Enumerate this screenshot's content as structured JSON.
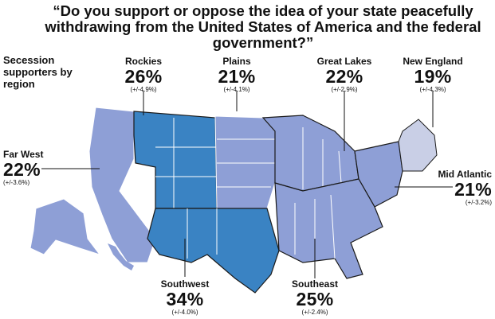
{
  "title": "“Do you support or oppose the idea of your state peacefully withdrawing from the United States of America and the federal government?”",
  "subhead": "Secession supporters by region",
  "colors": {
    "light": "#8e9fd6",
    "dark": "#3a83c3",
    "newengland": "#c9cfe6",
    "border": "#ffffff",
    "region_border": "#1a1a1a"
  },
  "regions": [
    {
      "key": "far_west",
      "name": "Far West",
      "pct": "22%",
      "moe": "(+/-3.6%)",
      "shade": "light"
    },
    {
      "key": "rockies",
      "name": "Rockies",
      "pct": "26%",
      "moe": "(+/-4.9%)",
      "shade": "dark"
    },
    {
      "key": "plains",
      "name": "Plains",
      "pct": "21%",
      "moe": "(+/-4.1%)",
      "shade": "light"
    },
    {
      "key": "great_lakes",
      "name": "Great Lakes",
      "pct": "22%",
      "moe": "(+/-2.9%)",
      "shade": "light"
    },
    {
      "key": "new_england",
      "name": "New England",
      "pct": "19%",
      "moe": "(+/-4.3%)",
      "shade": "newengland"
    },
    {
      "key": "mid_atlantic",
      "name": "Mid Atlantic",
      "pct": "21%",
      "moe": "(+/-3.2%)",
      "shade": "light"
    },
    {
      "key": "southeast",
      "name": "Southeast",
      "pct": "25%",
      "moe": "(+/-2.4%)",
      "shade": "light"
    },
    {
      "key": "southwest",
      "name": "Southwest",
      "pct": "34%",
      "moe": "(+/-4.0%)",
      "shade": "dark"
    }
  ]
}
